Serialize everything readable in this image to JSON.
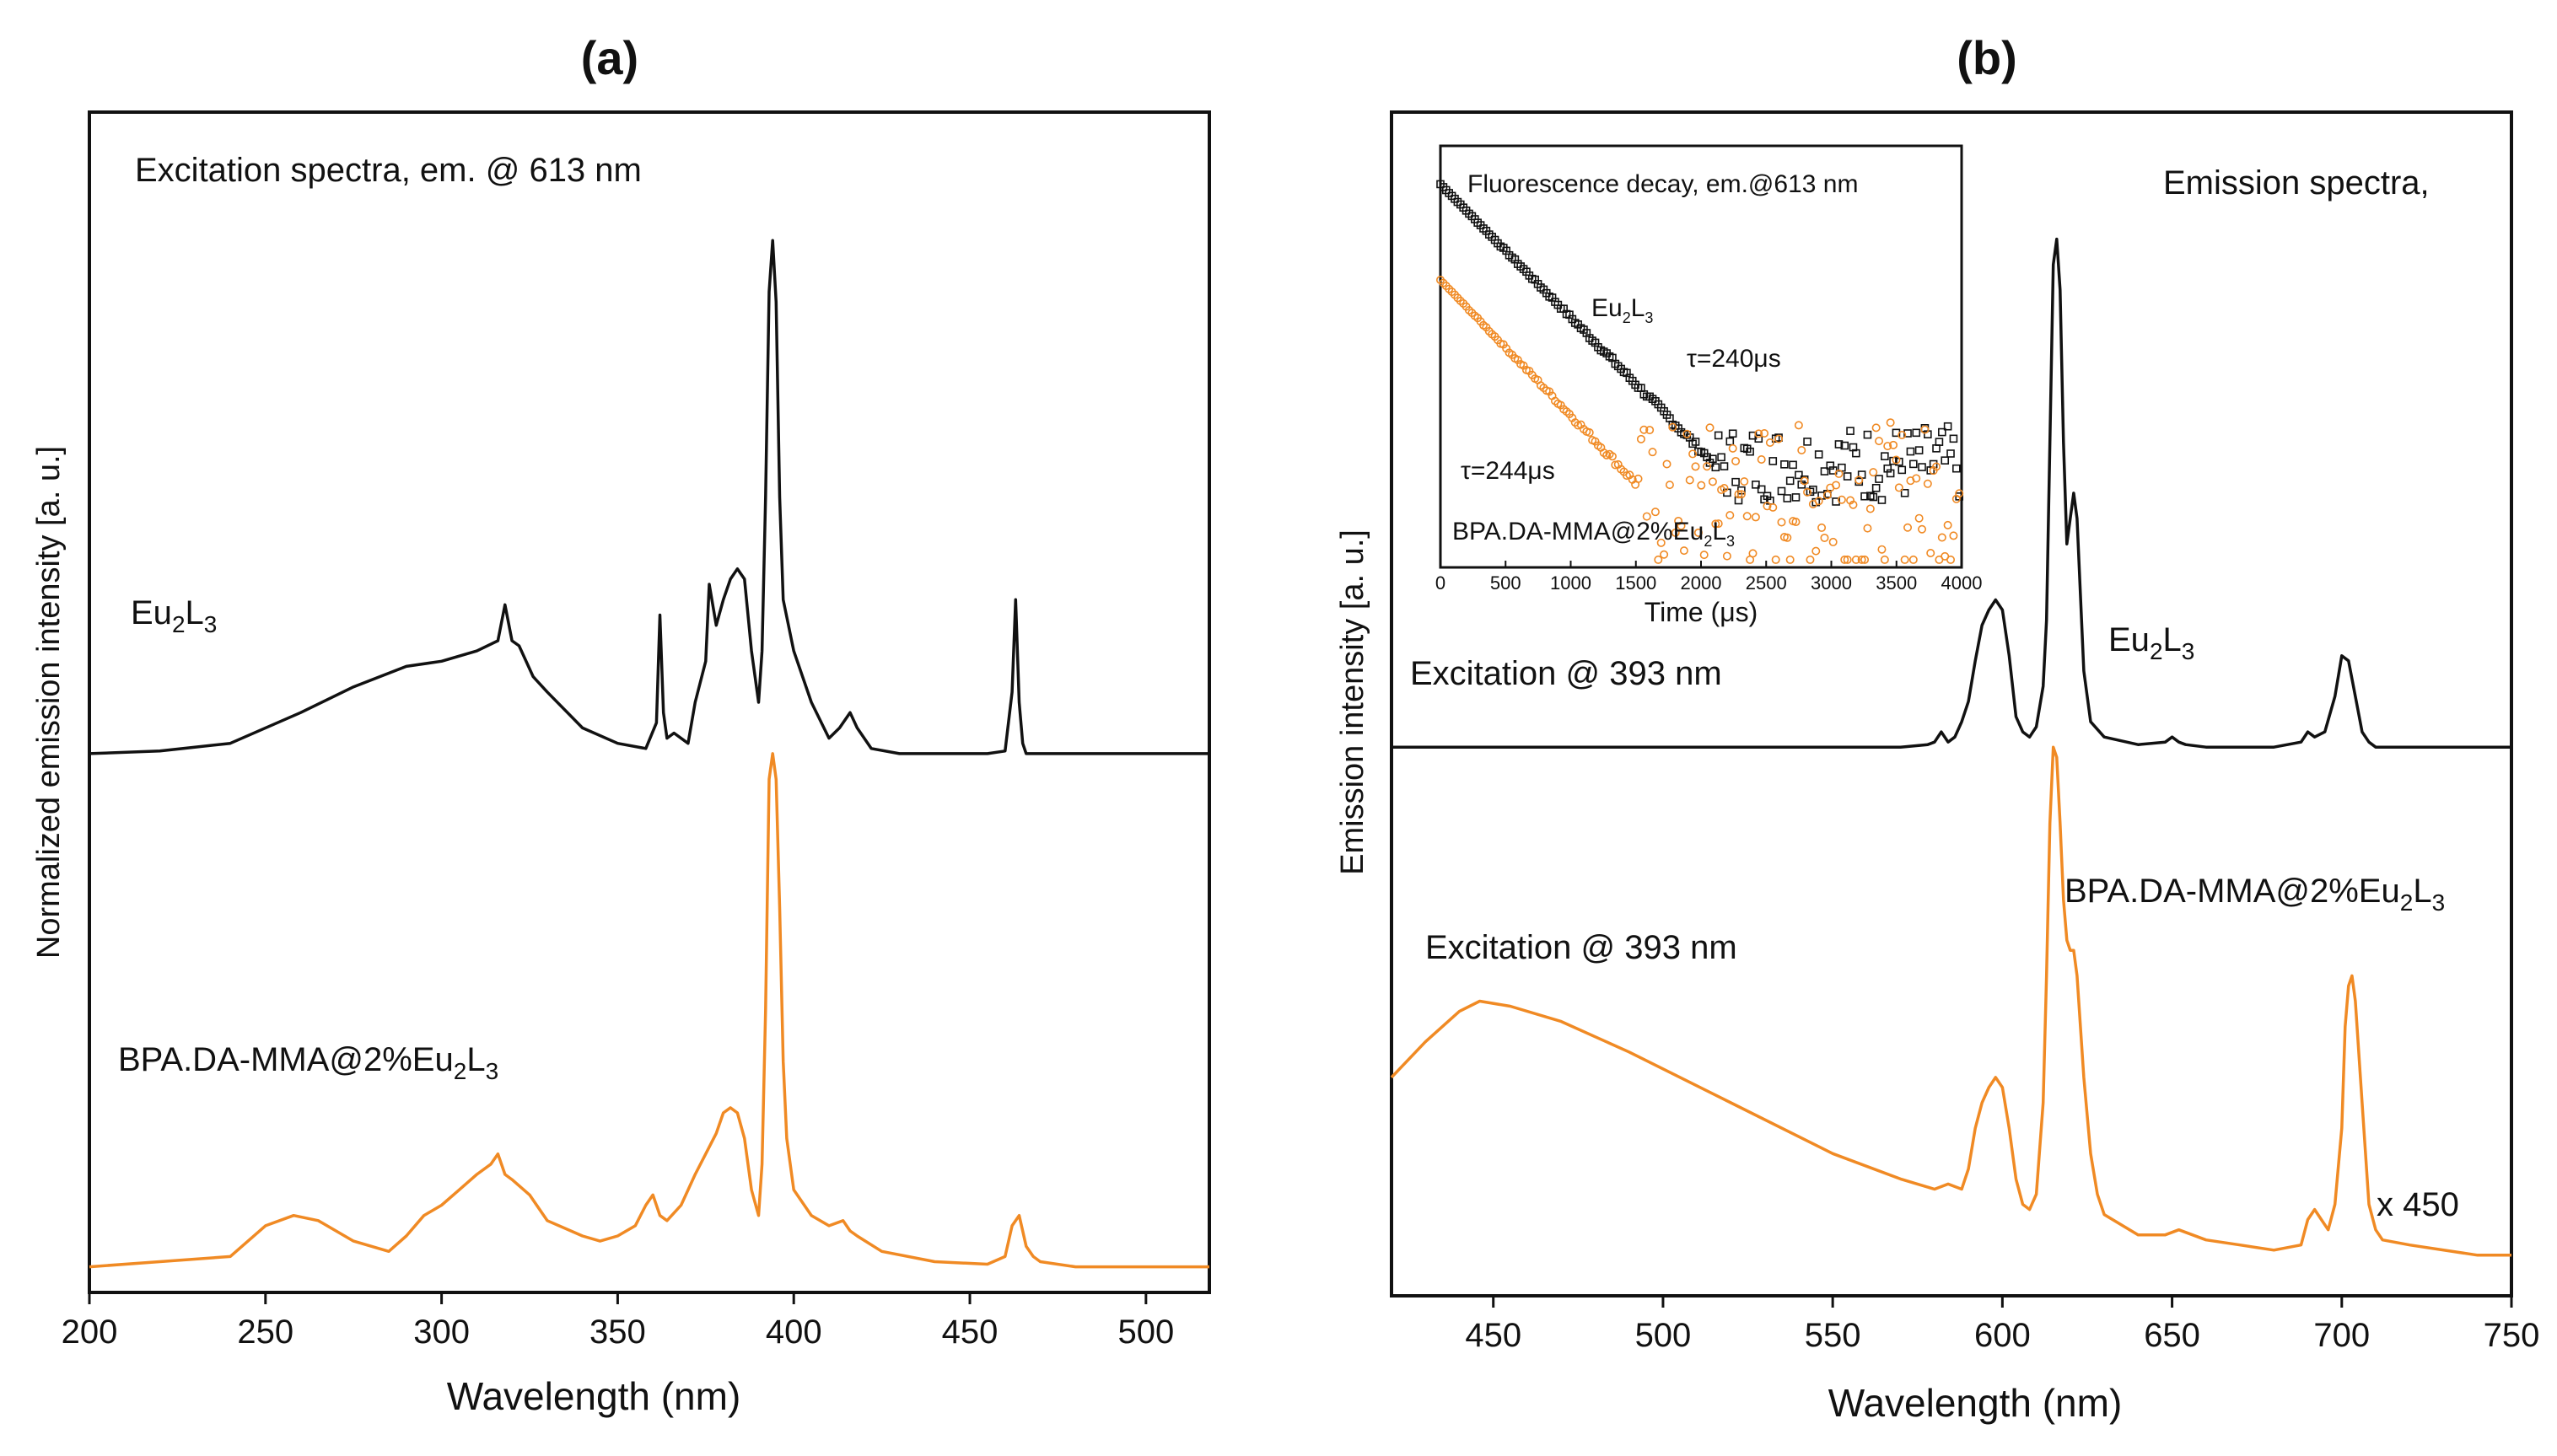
{
  "colors": {
    "black_series": "#111111",
    "orange_series": "#f08a24"
  },
  "chart_data": [
    {
      "type": "line",
      "panel_label": "(a)",
      "title": "Excitation spectra,  em. @ 613 nm",
      "xlabel": "Wavelength (nm)",
      "ylabel": "Normalized emission intensity [a. u.]",
      "xlim": [
        200,
        518
      ],
      "ylim": [
        -0.05,
        2.25
      ],
      "xticks": [
        200,
        250,
        300,
        350,
        400,
        450,
        500
      ],
      "yticks_shown": false,
      "series": [
        {
          "name": "Eu2L3",
          "label_main": "Eu",
          "label_sub1": "2",
          "label_mid": "L",
          "label_sub2": "3",
          "color": "#111111",
          "offset": 1.0,
          "x": [
            200,
            220,
            240,
            260,
            275,
            290,
            300,
            310,
            316,
            318,
            320,
            322,
            326,
            330,
            340,
            350,
            358,
            361,
            362,
            363,
            364,
            366,
            370,
            372,
            375,
            376,
            378,
            380,
            382,
            384,
            386,
            388,
            390,
            391,
            392,
            393,
            394,
            395,
            396,
            397,
            400,
            405,
            410,
            413,
            416,
            418,
            422,
            430,
            440,
            455,
            460,
            462,
            463,
            464,
            465,
            466,
            468,
            472,
            480,
            500,
            518
          ],
          "y": [
            0.0,
            0.005,
            0.02,
            0.08,
            0.13,
            0.17,
            0.18,
            0.2,
            0.22,
            0.29,
            0.22,
            0.21,
            0.15,
            0.12,
            0.05,
            0.02,
            0.01,
            0.06,
            0.27,
            0.08,
            0.03,
            0.04,
            0.02,
            0.1,
            0.18,
            0.33,
            0.25,
            0.3,
            0.34,
            0.36,
            0.34,
            0.2,
            0.1,
            0.2,
            0.5,
            0.9,
            1.0,
            0.88,
            0.5,
            0.3,
            0.2,
            0.1,
            0.03,
            0.05,
            0.08,
            0.05,
            0.01,
            0.0,
            0.0,
            0.0,
            0.005,
            0.12,
            0.3,
            0.1,
            0.02,
            0.0,
            0.0,
            0.0,
            0.0,
            0.0,
            0.0
          ]
        },
        {
          "name": "BPA.DA-MMA@2%Eu2L3",
          "label_main": "BPA.DA-MMA@2%Eu",
          "label_sub1": "2",
          "label_mid": "L",
          "label_sub2": "3",
          "color": "#f08a24",
          "offset": 0.0,
          "x": [
            200,
            220,
            240,
            250,
            258,
            265,
            275,
            285,
            290,
            295,
            300,
            305,
            310,
            314,
            316,
            318,
            320,
            325,
            330,
            340,
            345,
            350,
            355,
            358,
            360,
            362,
            364,
            368,
            372,
            375,
            378,
            380,
            382,
            384,
            386,
            388,
            390,
            391,
            392,
            393,
            394,
            395,
            396,
            397,
            398,
            400,
            405,
            410,
            414,
            416,
            418,
            425,
            440,
            455,
            460,
            462,
            464,
            466,
            468,
            470,
            480,
            500,
            518
          ],
          "y": [
            0.0,
            0.01,
            0.02,
            0.08,
            0.1,
            0.09,
            0.05,
            0.03,
            0.06,
            0.1,
            0.12,
            0.15,
            0.18,
            0.2,
            0.22,
            0.18,
            0.17,
            0.14,
            0.09,
            0.06,
            0.05,
            0.06,
            0.08,
            0.12,
            0.14,
            0.1,
            0.09,
            0.12,
            0.18,
            0.22,
            0.26,
            0.3,
            0.31,
            0.3,
            0.25,
            0.15,
            0.1,
            0.2,
            0.5,
            0.95,
            1.0,
            0.95,
            0.7,
            0.4,
            0.25,
            0.15,
            0.1,
            0.08,
            0.09,
            0.07,
            0.06,
            0.03,
            0.01,
            0.005,
            0.02,
            0.08,
            0.1,
            0.04,
            0.02,
            0.01,
            0.0,
            0.0,
            0.0
          ]
        }
      ]
    },
    {
      "type": "line",
      "panel_label": "(b)",
      "title": "Emission spectra,",
      "xlabel": "Wavelength (nm)",
      "ylabel": "Emission intensity [a. u.]",
      "xlim": [
        420,
        750
      ],
      "ylim": [
        -0.08,
        2.25
      ],
      "xticks": [
        450,
        500,
        550,
        600,
        650,
        700,
        750
      ],
      "yticks_shown": false,
      "scale_note": "x 450",
      "series": [
        {
          "name": "Eu2L3",
          "label_main": "Eu",
          "label_sub1": "2",
          "label_mid": "L",
          "label_sub2": "3",
          "note": "Excitation @ 393 nm",
          "color": "#111111",
          "offset": 1.0,
          "x": [
            420,
            450,
            500,
            570,
            578,
            580,
            582,
            584,
            586,
            588,
            590,
            592,
            594,
            596,
            598,
            600,
            602,
            604,
            606,
            608,
            610,
            612,
            613,
            614,
            615,
            616,
            617,
            618,
            619,
            620,
            621,
            622,
            623,
            624,
            626,
            630,
            640,
            648,
            650,
            652,
            654,
            660,
            680,
            688,
            690,
            692,
            695,
            698,
            700,
            702,
            704,
            706,
            708,
            710,
            720,
            750
          ],
          "y": [
            0.0,
            0.0,
            0.0,
            0.0,
            0.005,
            0.01,
            0.03,
            0.01,
            0.02,
            0.05,
            0.09,
            0.17,
            0.24,
            0.27,
            0.29,
            0.27,
            0.18,
            0.06,
            0.03,
            0.02,
            0.04,
            0.12,
            0.25,
            0.6,
            0.95,
            1.0,
            0.9,
            0.6,
            0.4,
            0.45,
            0.5,
            0.45,
            0.3,
            0.15,
            0.05,
            0.02,
            0.005,
            0.01,
            0.02,
            0.01,
            0.005,
            0.0,
            0.0,
            0.01,
            0.03,
            0.02,
            0.03,
            0.1,
            0.18,
            0.17,
            0.1,
            0.03,
            0.01,
            0.0,
            0.0,
            0.0
          ]
        },
        {
          "name": "BPA.DA-MMA@2%Eu2L3",
          "label_main": "BPA.DA-MMA@2%Eu",
          "label_sub1": "2",
          "label_mid": "L",
          "label_sub2": "3",
          "note": "Excitation @ 393 nm",
          "color": "#f08a24",
          "offset": 0.0,
          "x": [
            420,
            430,
            440,
            446,
            455,
            470,
            490,
            520,
            550,
            570,
            580,
            584,
            588,
            590,
            592,
            594,
            596,
            598,
            600,
            602,
            604,
            606,
            608,
            610,
            612,
            613,
            614,
            615,
            616,
            617,
            618,
            619,
            620,
            621,
            622,
            623,
            624,
            626,
            628,
            630,
            640,
            648,
            652,
            656,
            660,
            670,
            680,
            688,
            690,
            692,
            694,
            696,
            698,
            700,
            701,
            702,
            703,
            704,
            706,
            708,
            710,
            712,
            720,
            740,
            750
          ],
          "y": [
            0.35,
            0.42,
            0.48,
            0.5,
            0.49,
            0.46,
            0.4,
            0.3,
            0.2,
            0.15,
            0.13,
            0.14,
            0.13,
            0.17,
            0.25,
            0.3,
            0.33,
            0.35,
            0.33,
            0.25,
            0.15,
            0.1,
            0.09,
            0.12,
            0.3,
            0.55,
            0.85,
            1.0,
            0.98,
            0.85,
            0.7,
            0.62,
            0.6,
            0.6,
            0.55,
            0.45,
            0.35,
            0.2,
            0.12,
            0.08,
            0.04,
            0.04,
            0.05,
            0.04,
            0.03,
            0.02,
            0.01,
            0.02,
            0.07,
            0.09,
            0.07,
            0.05,
            0.1,
            0.25,
            0.45,
            0.53,
            0.55,
            0.5,
            0.3,
            0.1,
            0.05,
            0.03,
            0.02,
            0.0,
            0.0
          ]
        }
      ],
      "inset": {
        "title": "Fluorescence decay, em.@613 nm",
        "xlabel": "Time (μs)",
        "xlim": [
          0,
          4000
        ],
        "ylim": [
          0,
          1.1
        ],
        "xticks": [
          0,
          500,
          1000,
          1500,
          2000,
          2500,
          3000,
          3500,
          4000
        ],
        "series": [
          {
            "name": "Eu2L3",
            "label_main": "Eu",
            "label_sub1": "2",
            "label_mid": "L",
            "label_sub2": "3",
            "tau": "τ=240μs",
            "color": "#111111",
            "start": 1.0,
            "end": 0.27,
            "floor": 0.27,
            "spread": 0.1
          },
          {
            "name": "BPA.DA-MMA@2%Eu2L3",
            "label_main": "BPA.DA-MMA@2%Eu",
            "label_sub1": "2",
            "label_mid": "L",
            "label_sub2": "3",
            "tau": "τ=244μs",
            "color": "#f08a24",
            "start": 0.75,
            "end": 0.22,
            "floor": 0.15,
            "spread": 0.2
          }
        ]
      }
    }
  ]
}
